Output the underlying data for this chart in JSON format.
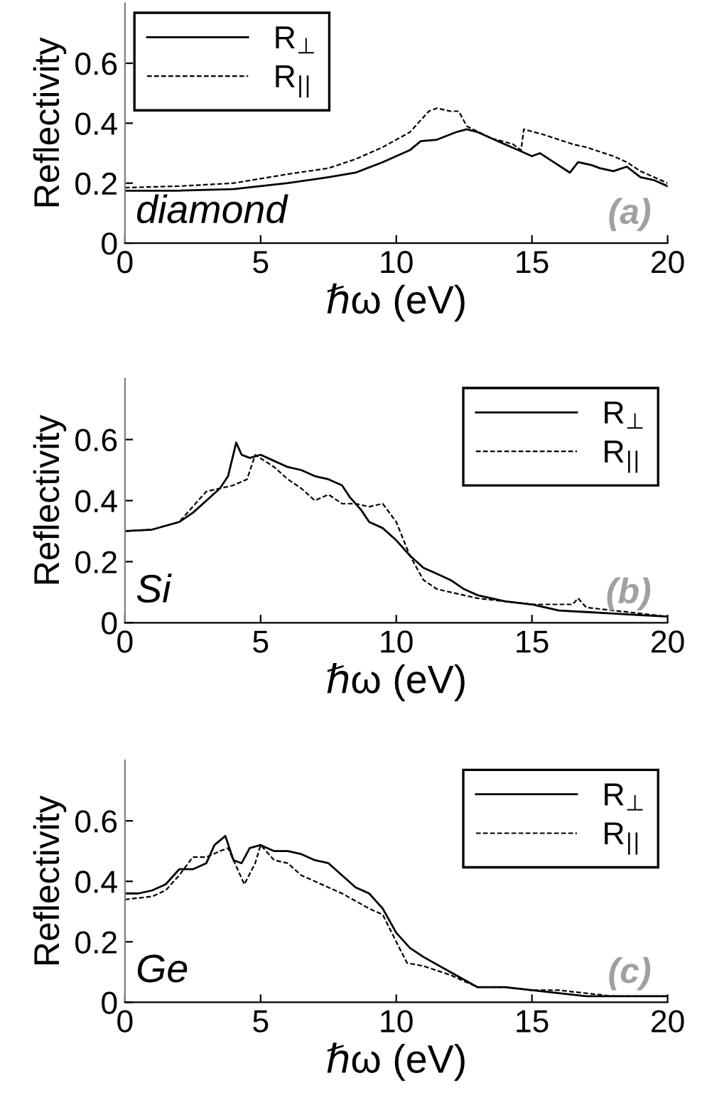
{
  "chart_data": [
    {
      "type": "line",
      "xlabel": "ℏω (eV)",
      "ylabel": "Reflectivity",
      "annotations": [
        "diamond",
        "(a)"
      ],
      "xlim": [
        0,
        20
      ],
      "ylim": [
        0,
        0.8
      ],
      "xticks": [
        0,
        5,
        10,
        15,
        20
      ],
      "yticks": [
        0,
        0.2,
        0.4,
        0.6
      ],
      "legend": "top left",
      "grid": false,
      "marker": "none",
      "series": [
        {
          "name": "R$_{⊥}$",
          "color": "#000000",
          "line_style": "solid",
          "x": [
            0,
            2,
            4,
            6,
            7.5,
            8.5,
            9.5,
            10.5,
            10.9,
            11.5,
            12.2,
            12.6,
            13,
            13.5,
            14,
            14.5,
            15,
            15.3,
            15.8,
            16.4,
            16.7,
            17.2,
            17.5,
            18,
            18.5,
            19,
            19.5,
            20
          ],
          "values": [
            0.175,
            0.175,
            0.18,
            0.2,
            0.22,
            0.235,
            0.27,
            0.31,
            0.34,
            0.345,
            0.37,
            0.38,
            0.37,
            0.35,
            0.33,
            0.31,
            0.29,
            0.3,
            0.27,
            0.235,
            0.27,
            0.26,
            0.25,
            0.24,
            0.255,
            0.22,
            0.21,
            0.19
          ]
        },
        {
          "name": "R$_{||}$",
          "color": "#000000",
          "line_style": "dashed",
          "x": [
            0,
            2,
            4,
            6,
            7.5,
            8.5,
            9.5,
            10.5,
            11.2,
            11.5,
            12,
            12.3,
            12.6,
            13.5,
            14.3,
            14.6,
            14.7,
            15.5,
            16.5,
            17,
            18,
            18.5,
            19,
            19.5,
            20
          ],
          "values": [
            0.185,
            0.19,
            0.2,
            0.23,
            0.25,
            0.28,
            0.32,
            0.37,
            0.44,
            0.45,
            0.44,
            0.44,
            0.39,
            0.35,
            0.33,
            0.31,
            0.38,
            0.36,
            0.33,
            0.32,
            0.29,
            0.27,
            0.24,
            0.22,
            0.2
          ]
        }
      ]
    },
    {
      "type": "line",
      "xlabel": "ℏω (eV)",
      "ylabel": "Reflectivity",
      "annotations": [
        "Si",
        "(b)"
      ],
      "xlim": [
        0,
        20
      ],
      "ylim": [
        0,
        0.8
      ],
      "xticks": [
        0,
        5,
        10,
        15,
        20
      ],
      "yticks": [
        0,
        0.2,
        0.4,
        0.6
      ],
      "legend": "top right",
      "grid": false,
      "marker": "none",
      "series": [
        {
          "name": "R$_{⊥}$",
          "color": "#000000",
          "line_style": "solid",
          "x": [
            0,
            1,
            2,
            2.5,
            3,
            3.5,
            3.8,
            4.1,
            4.3,
            4.6,
            5,
            5.5,
            6,
            6.5,
            7,
            7.5,
            8,
            8.3,
            8.7,
            9,
            9.5,
            10,
            10.5,
            11,
            11.5,
            12,
            12.5,
            13,
            14,
            15,
            16,
            17,
            18,
            19,
            20
          ],
          "values": [
            0.3,
            0.305,
            0.33,
            0.36,
            0.4,
            0.44,
            0.48,
            0.59,
            0.55,
            0.54,
            0.55,
            0.53,
            0.51,
            0.5,
            0.48,
            0.47,
            0.45,
            0.41,
            0.37,
            0.33,
            0.31,
            0.27,
            0.22,
            0.18,
            0.16,
            0.14,
            0.11,
            0.09,
            0.07,
            0.06,
            0.04,
            0.035,
            0.03,
            0.025,
            0.02
          ]
        },
        {
          "name": "R$_{||}$",
          "color": "#000000",
          "line_style": "dashed",
          "x": [
            0,
            1,
            2,
            2.5,
            3,
            3.5,
            4,
            4.5,
            4.8,
            5.5,
            6,
            6.5,
            7,
            7.5,
            8,
            8.5,
            9,
            9.5,
            10,
            10.5,
            11,
            11.5,
            12,
            13,
            14,
            15,
            16,
            16.5,
            16.7,
            17,
            18,
            19,
            20
          ],
          "values": [
            0.3,
            0.305,
            0.33,
            0.38,
            0.43,
            0.44,
            0.45,
            0.47,
            0.55,
            0.51,
            0.47,
            0.44,
            0.4,
            0.42,
            0.39,
            0.39,
            0.38,
            0.39,
            0.33,
            0.22,
            0.14,
            0.11,
            0.1,
            0.08,
            0.07,
            0.06,
            0.06,
            0.06,
            0.08,
            0.05,
            0.04,
            0.03,
            0.02
          ]
        }
      ]
    },
    {
      "type": "line",
      "xlabel": "ℏω (eV)",
      "ylabel": "Reflectivity",
      "annotations": [
        "Ge",
        "(c)"
      ],
      "xlim": [
        0,
        20
      ],
      "ylim": [
        0,
        0.8
      ],
      "xticks": [
        0,
        5,
        10,
        15,
        20
      ],
      "yticks": [
        0,
        0.2,
        0.4,
        0.6
      ],
      "legend": "top right",
      "grid": false,
      "marker": "none",
      "series": [
        {
          "name": "R$_{⊥}$",
          "color": "#000000",
          "line_style": "solid",
          "x": [
            0,
            0.5,
            1,
            1.5,
            2,
            2.5,
            3,
            3.3,
            3.7,
            4,
            4.3,
            4.6,
            5,
            5.5,
            6,
            6.5,
            7,
            7.5,
            8,
            8.5,
            9,
            9.5,
            10,
            10.5,
            11,
            12,
            13,
            14,
            15,
            16,
            17,
            18,
            20
          ],
          "values": [
            0.36,
            0.36,
            0.37,
            0.39,
            0.44,
            0.44,
            0.46,
            0.52,
            0.55,
            0.47,
            0.46,
            0.51,
            0.52,
            0.5,
            0.5,
            0.49,
            0.47,
            0.46,
            0.42,
            0.38,
            0.36,
            0.31,
            0.23,
            0.18,
            0.15,
            0.1,
            0.05,
            0.05,
            0.04,
            0.03,
            0.02,
            0.02,
            0.02
          ]
        },
        {
          "name": "R$_{||}$",
          "color": "#000000",
          "line_style": "dashed",
          "x": [
            0,
            1,
            1.5,
            2,
            2.5,
            3,
            3.5,
            3.8,
            4.2,
            4.4,
            4.8,
            5,
            5.5,
            6,
            6.5,
            7,
            8,
            9,
            9.5,
            10,
            10.4,
            11,
            12,
            13,
            14,
            15,
            16,
            17,
            18,
            20
          ],
          "values": [
            0.34,
            0.35,
            0.37,
            0.42,
            0.48,
            0.48,
            0.5,
            0.51,
            0.43,
            0.39,
            0.46,
            0.52,
            0.47,
            0.46,
            0.42,
            0.4,
            0.36,
            0.31,
            0.29,
            0.2,
            0.13,
            0.12,
            0.09,
            0.05,
            0.05,
            0.04,
            0.04,
            0.03,
            0.02,
            0.02
          ]
        }
      ]
    }
  ]
}
